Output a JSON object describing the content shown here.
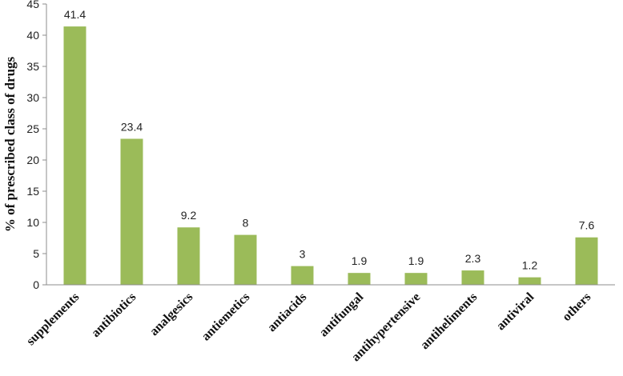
{
  "chart_data": {
    "type": "bar",
    "ylabel": "% of prescribed class of drugs",
    "xlabel": "",
    "ylim": [
      0,
      45
    ],
    "ytick_step": 5,
    "grid": false,
    "bar_color": "#9bbb59",
    "categories": [
      "supplements",
      "antibiotics",
      "analgesics",
      "antiemetics",
      "antiacids",
      "antifungal",
      "antihypertensive",
      "antiheliments",
      "antiviral",
      "others"
    ],
    "values": [
      41.4,
      23.4,
      9.2,
      8,
      3,
      1.9,
      1.9,
      2.3,
      1.2,
      7.6
    ],
    "value_labels": [
      "41.4",
      "23.4",
      "9.2",
      "8",
      "3",
      "1.9",
      "1.9",
      "2.3",
      "1.2",
      "7.6"
    ]
  }
}
